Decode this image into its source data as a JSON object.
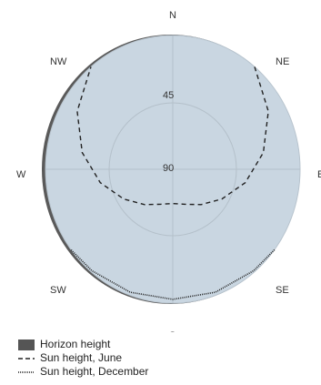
{
  "chart_data": {
    "type": "polar-line",
    "directions": [
      "N",
      "NE",
      "E",
      "SE",
      "S",
      "SW",
      "W",
      "NW"
    ],
    "ring_labels": [
      "45",
      "90"
    ],
    "series": [
      {
        "name": "Horizon height",
        "kind": "area",
        "color": "#555555",
        "azimuth": [
          0,
          45,
          90,
          135,
          180,
          225,
          240,
          255,
          270,
          285,
          300,
          315,
          360
        ],
        "altitude": [
          0,
          0,
          0,
          0,
          0,
          0,
          2,
          4,
          5,
          4,
          3,
          0,
          0
        ]
      },
      {
        "name": "Sun height, June",
        "kind": "dashed",
        "color": "#222222",
        "azimuth": [
          40,
          60,
          80,
          100,
          120,
          140,
          160,
          180,
          200,
          220,
          240,
          260,
          280,
          300,
          320
        ],
        "altitude": [
          0,
          12,
          25,
          38,
          50,
          59,
          65,
          67,
          65,
          59,
          50,
          38,
          25,
          12,
          0
        ]
      },
      {
        "name": "Sun height, December",
        "kind": "dotted",
        "color": "#222222",
        "azimuth": [
          127,
          140,
          160,
          180,
          200,
          220,
          233
        ],
        "altitude": [
          0,
          1,
          2,
          2.5,
          2,
          1,
          0
        ]
      }
    ]
  },
  "legend": {
    "horizon": "Horizon height",
    "june": "Sun height, June",
    "december": "Sun height, December"
  }
}
